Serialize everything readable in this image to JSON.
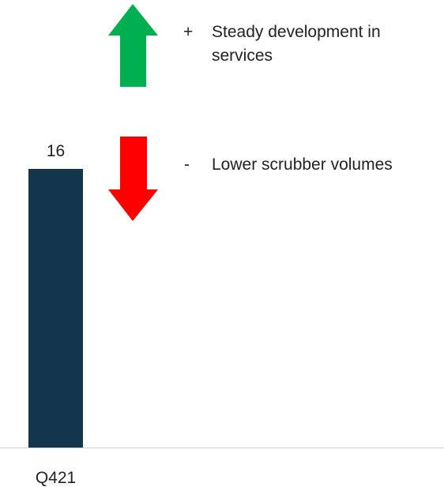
{
  "chart_data": {
    "type": "bar",
    "categories": [
      "Q421"
    ],
    "values": [
      16
    ],
    "color": "#14364d",
    "annotations": [
      {
        "marker": "+",
        "text": "Steady development in services",
        "direction": "up",
        "color": "#00b050"
      },
      {
        "marker": "-",
        "text": "Lower scrubber volumes",
        "direction": "down",
        "color": "#ff0000"
      }
    ]
  }
}
